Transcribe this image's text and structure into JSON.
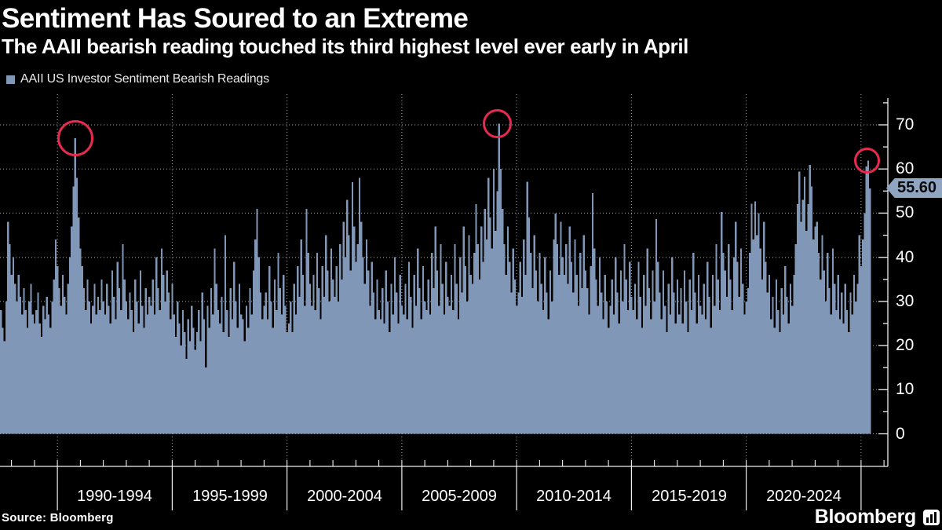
{
  "colors": {
    "background": "#000000",
    "bars": "#8097b7",
    "grid": "#d8d8d8",
    "axis": "#f0f0f0",
    "text": "#ffffff",
    "annotation_circle": "#e82a50",
    "tag_background": "#8fa5c2",
    "tag_text": "#0a0a0a"
  },
  "chart_data": {
    "type": "bar",
    "title": "Sentiment Has Soured to an Extreme",
    "subtitle": "The AAII bearish reading touched its third highest level ever early in April",
    "series_name": "AAII US Investor Sentiment Bearish Readings",
    "unit": "%",
    "grid": "dotted",
    "legend_position": "top-left",
    "x_start_year": 1987.5,
    "samples_per_year": 13,
    "ylim": [
      0,
      77
    ],
    "y_ticks": [
      0,
      10,
      20,
      30,
      40,
      50,
      60,
      70
    ],
    "y_minor_tick_step": 5,
    "x_boundary_years": [
      1990,
      1995,
      2000,
      2005,
      2010,
      2015,
      2020,
      2025
    ],
    "x_group_labels": [
      "1990-1994",
      "1995-1999",
      "2000-2004",
      "2005-2009",
      "2010-2014",
      "2015-2019",
      "2020-2024"
    ],
    "last_value": 55.6,
    "last_value_label": "55.60",
    "annotations": [
      {
        "year": 1990.77,
        "value": 67.0,
        "radius": 23
      },
      {
        "year": 2009.17,
        "value": 70.3,
        "radius": 18.5
      },
      {
        "year": 2025.27,
        "value": 61.9,
        "radius": 16.5
      }
    ],
    "values": [
      28,
      24,
      21,
      30,
      48,
      43,
      36,
      40,
      34,
      30,
      36,
      31,
      27,
      33,
      28,
      24,
      30,
      34,
      27,
      25,
      28,
      32,
      25,
      22,
      29,
      26,
      31,
      27,
      24,
      30,
      35,
      44,
      38,
      33,
      29,
      36,
      31,
      27,
      34,
      40,
      47,
      56,
      67,
      58,
      49,
      42,
      38,
      33,
      28,
      35,
      30,
      25,
      29,
      34,
      27,
      31,
      28,
      35,
      30,
      27,
      34,
      29,
      25,
      37,
      31,
      26,
      39,
      33,
      28,
      43,
      35,
      30,
      26,
      32,
      28,
      23,
      35,
      30,
      25,
      37,
      29,
      24,
      33,
      27,
      31,
      29,
      35,
      27,
      40,
      33,
      28,
      42,
      36,
      30,
      37,
      32,
      26,
      34,
      27,
      22,
      30,
      25,
      20,
      28,
      23,
      17,
      26,
      21,
      29,
      24,
      19,
      23,
      28,
      21,
      32,
      26,
      15,
      29,
      24,
      33,
      27,
      42,
      34,
      28,
      25,
      31,
      23,
      45,
      28,
      22,
      33,
      26,
      39,
      30,
      24,
      34,
      27,
      26,
      21,
      29,
      24,
      33,
      27,
      37,
      44,
      51,
      40,
      32,
      26,
      29,
      32,
      26,
      38,
      30,
      24,
      35,
      28,
      41,
      33,
      27,
      36,
      29,
      23,
      25,
      30,
      23,
      34,
      27,
      38,
      31,
      44,
      36,
      29,
      51,
      41,
      34,
      29,
      36,
      28,
      41,
      33,
      26,
      38,
      31,
      45,
      37,
      30,
      42,
      35,
      31,
      38,
      30,
      43,
      35,
      48,
      40,
      53,
      45,
      37,
      57,
      47,
      39,
      43,
      58,
      48,
      40,
      34,
      44,
      37,
      29,
      39,
      32,
      26,
      35,
      28,
      26,
      33,
      25,
      37,
      30,
      23,
      34,
      27,
      40,
      32,
      25,
      36,
      29,
      27,
      34,
      26,
      39,
      31,
      24,
      36,
      29,
      42,
      33,
      26,
      38,
      30,
      28,
      35,
      27,
      41,
      33,
      47,
      37,
      29,
      43,
      34,
      27,
      39,
      31,
      29,
      36,
      28,
      43,
      34,
      26,
      40,
      32,
      47,
      38,
      30,
      45,
      36,
      34,
      41,
      52,
      43,
      35,
      47,
      39,
      51,
      44,
      58,
      49,
      42,
      60,
      46,
      55,
      70.3,
      60,
      51,
      43,
      36,
      47,
      39,
      32,
      42,
      35,
      29,
      32,
      39,
      31,
      44,
      36,
      57.1,
      49,
      41,
      33,
      45,
      37,
      30,
      41,
      34,
      28,
      40,
      32,
      26,
      37,
      30,
      44,
      49.9,
      43,
      36,
      48,
      40,
      36,
      43,
      34,
      47,
      39,
      32,
      44,
      36,
      29,
      41,
      33,
      45,
      37,
      33,
      27,
      38,
      54.5,
      42,
      35,
      29,
      40,
      32,
      26,
      36,
      30,
      24,
      29,
      35,
      27,
      40,
      32,
      25,
      37,
      30,
      43,
      35,
      28,
      39,
      31,
      28,
      34,
      26,
      39,
      31,
      24,
      36,
      29,
      42,
      33,
      26,
      37,
      30,
      48.7,
      39,
      32,
      26,
      37,
      29,
      23,
      34,
      27,
      40,
      32,
      25,
      35,
      27,
      33,
      25,
      37,
      30,
      23,
      35,
      28,
      41,
      32,
      25,
      36,
      29,
      27,
      34,
      26,
      39,
      31,
      24,
      36,
      29,
      43,
      35,
      28,
      50.3,
      41,
      37,
      31,
      43,
      35,
      28,
      40,
      48,
      39,
      31,
      42,
      34,
      27,
      30,
      33,
      41,
      52.1,
      44,
      52.7,
      45,
      50,
      42,
      35,
      48,
      39,
      32,
      36,
      26,
      31,
      24,
      35,
      28,
      23,
      33,
      27,
      38,
      31,
      25,
      34,
      29,
      36,
      43,
      52,
      59.4,
      48,
      53,
      58.3,
      46,
      52,
      60.9,
      56,
      44,
      47,
      48,
      41,
      35,
      45,
      37,
      30,
      41,
      33,
      27,
      42,
      34,
      28,
      36,
      26,
      32,
      25,
      34,
      28,
      23,
      32,
      27,
      36,
      30,
      34,
      45,
      38,
      44,
      50,
      60.6,
      61.9,
      55.6
    ]
  },
  "footer": {
    "source": "Source:  Bloomberg",
    "brand": "Bloomberg"
  }
}
